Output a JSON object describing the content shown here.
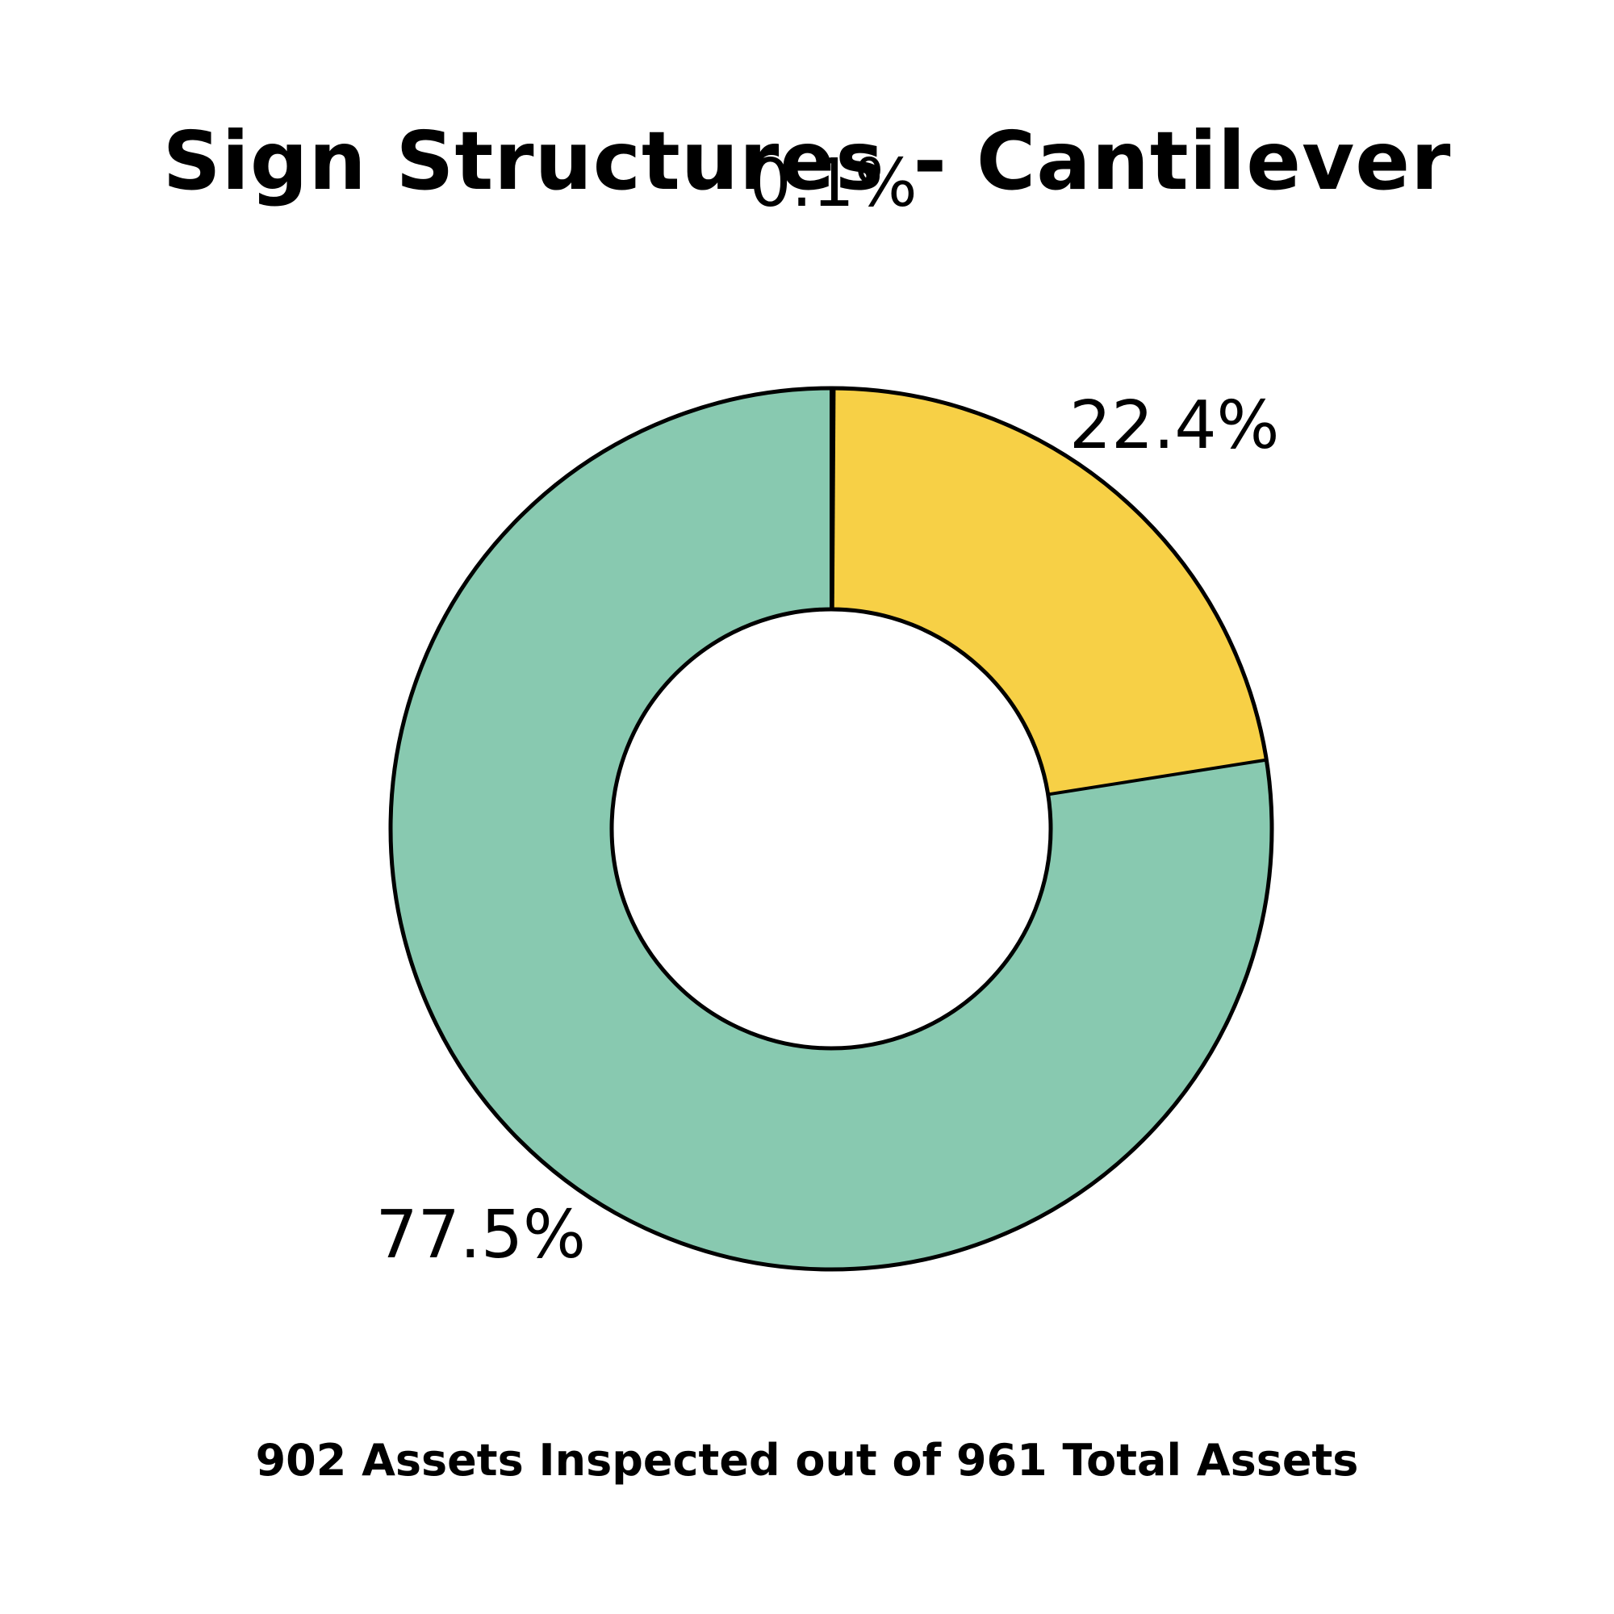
{
  "chart_data": {
    "type": "pie",
    "title": "Sign Structures - Cantilever",
    "footer": "902 Assets Inspected out of 961 Total Assets",
    "slices": [
      {
        "value": 77.5,
        "label": "77.5%",
        "color": "#88c9b0"
      },
      {
        "value": 22.4,
        "label": "22.4%",
        "color": "#f7d046"
      },
      {
        "value": 0.1,
        "label": "0.1%",
        "color": "#e8736e"
      }
    ],
    "hole": true,
    "legend": "none"
  }
}
